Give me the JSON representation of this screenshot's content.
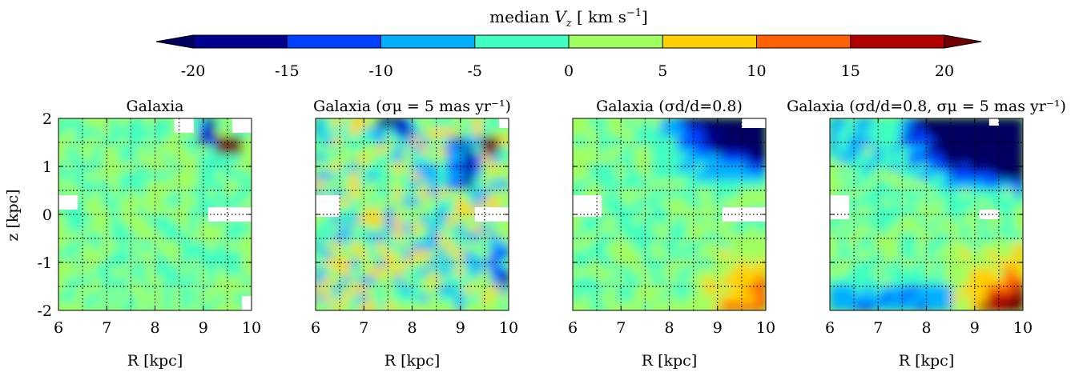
{
  "figure": {
    "colorbar": {
      "title": "median V_z [ km s^-1 ]",
      "title_parts": {
        "prefix": "median ",
        "var": "V",
        "sub": "z",
        "unit_open": "  [ km s",
        "sup": "−1",
        "unit_close": "]"
      },
      "ticks": [
        "-20",
        "-15",
        "-10",
        "-5",
        "0",
        "5",
        "10",
        "15",
        "20"
      ],
      "colors": [
        "#00008f",
        "#0040ff",
        "#00b0ff",
        "#40ffc0",
        "#a0ff60",
        "#ffd000",
        "#ff6000",
        "#b00000"
      ],
      "extend_under": "#000060",
      "extend_over": "#700000"
    },
    "panel_titles": [
      "Galaxia",
      "Galaxia (σμ = 5 mas yr⁻¹)",
      "Galaxia (σd/d=0.8)",
      "Galaxia (σd/d=0.8, σμ = 5 mas yr⁻¹)"
    ],
    "xlabel": "R [kpc]",
    "ylabel": "z [kpc]",
    "x_ticks": [
      "6",
      "7",
      "8",
      "9",
      "10"
    ],
    "y_ticks": [
      "2",
      "1",
      "0",
      "-1",
      "-2"
    ]
  },
  "chart_data": [
    {
      "type": "heatmap",
      "title": "Galaxia",
      "xlabel": "R [kpc]",
      "ylabel": "z [kpc]",
      "xlim": [
        6,
        10
      ],
      "ylim": [
        -2,
        2
      ],
      "grid": true,
      "value_range": [
        -20,
        20
      ],
      "description_values": "mostly -5 to 5 km/s (green/cyan); one hot spot near R=9.5,z=1.5 (~20)"
    },
    {
      "type": "heatmap",
      "title": "Galaxia (σμ = 5 mas yr⁻¹)",
      "xlabel": "R [kpc]",
      "xlim": [
        6,
        10
      ],
      "ylim": [
        -2,
        2
      ],
      "grid": true,
      "value_range": [
        -20,
        20
      ],
      "description_values": "noisier; blue patches near top right, red spot near R=9.5,z=1.5"
    },
    {
      "type": "heatmap",
      "title": "Galaxia (σd/d=0.8)",
      "xlabel": "R [kpc]",
      "xlim": [
        6,
        10
      ],
      "ylim": [
        -2,
        2
      ],
      "grid": true,
      "value_range": [
        -20,
        20
      ],
      "description_values": "strong negative (~-20) at top right, positive (~10-15) at bottom right"
    },
    {
      "type": "heatmap",
      "title": "Galaxia (σd/d=0.8, σμ = 5 mas yr⁻¹)",
      "xlabel": "R [kpc]",
      "xlim": [
        6,
        10
      ],
      "ylim": [
        -2,
        2
      ],
      "grid": true,
      "value_range": [
        -20,
        20
      ],
      "description_values": "very strong negative at top (< -20), strong positive (>15) at bottom right"
    }
  ]
}
